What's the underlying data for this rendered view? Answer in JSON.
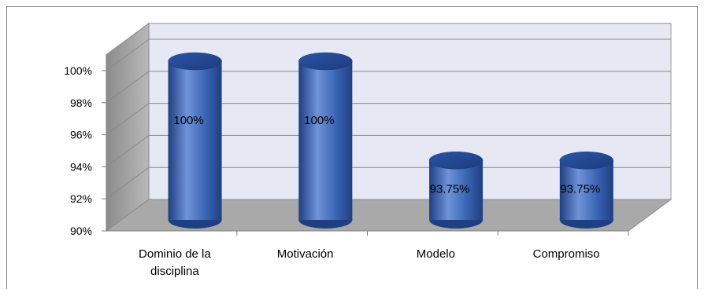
{
  "chart_data": {
    "type": "bar",
    "style": "3d-cylinder",
    "categories": [
      "Dominio de la disciplina",
      "Motivación",
      "Modelo",
      "Compromiso"
    ],
    "category_lines": [
      [
        "Dominio de la",
        "disciplina"
      ],
      [
        "Motivación"
      ],
      [
        "Modelo"
      ],
      [
        "Compromiso"
      ]
    ],
    "values": [
      100,
      100,
      93.75,
      93.75
    ],
    "data_labels": [
      "100%",
      "100%",
      "93.75%",
      "93.75%"
    ],
    "y_ticks": [
      90,
      92,
      94,
      96,
      98,
      100
    ],
    "y_tick_labels": [
      "90%",
      "92%",
      "94%",
      "96%",
      "98%",
      "100%"
    ],
    "ylim": [
      90,
      101
    ],
    "grid": true,
    "legend": "none",
    "colors": {
      "bar": "#3a64b4",
      "bar_light": "#6f93d8",
      "bar_dark": "#1e3f82",
      "back_wall": "#e6e8f3",
      "side_wall": "#a6a6a6",
      "floor": "#a9a9a9",
      "grid": "#8a8a8a"
    }
  }
}
